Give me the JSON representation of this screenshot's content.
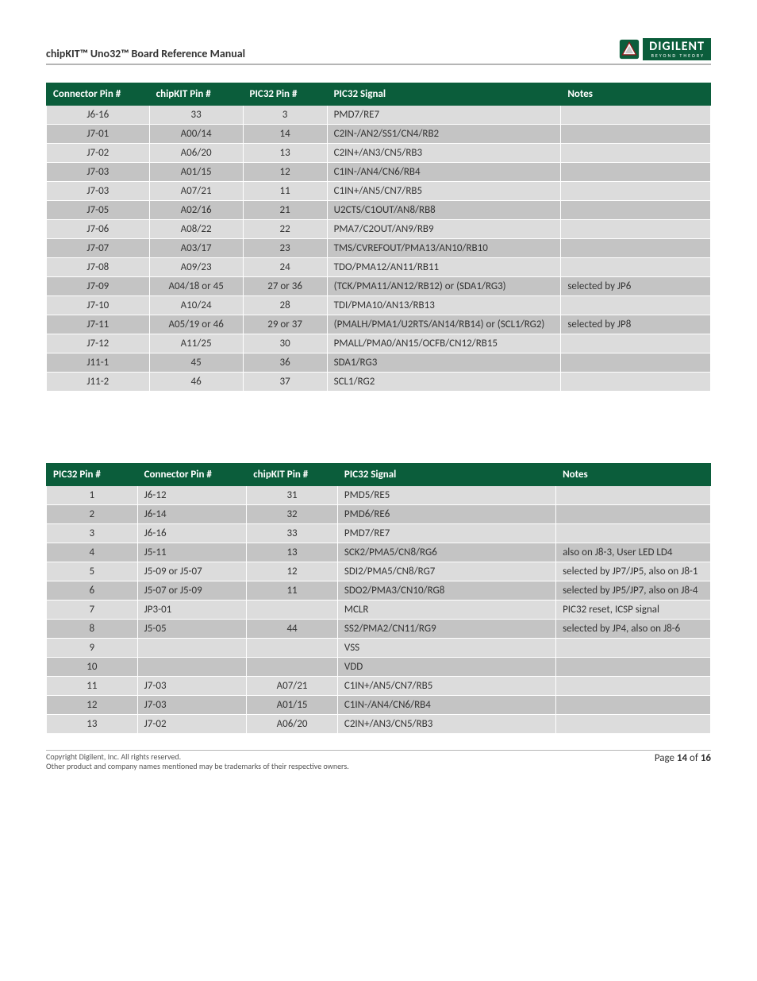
{
  "header": {
    "title": "chipKIT™ Uno32™ Board Reference Manual",
    "logo_text": "DIGILENT",
    "logo_sub": "BEYOND THEORY"
  },
  "table1": {
    "columns": [
      "Connector Pin #",
      "chipKIT Pin #",
      "PIC32 Pin #",
      "PIC32 Signal",
      "Notes"
    ],
    "rows": [
      [
        "J6-16",
        "33",
        "3",
        "PMD7/RE7",
        ""
      ],
      [
        "J7-01",
        "A00/14",
        "14",
        "C2IN-/AN2/SS1/CN4/RB2",
        ""
      ],
      [
        "J7-02",
        "A06/20",
        "13",
        "C2IN+/AN3/CN5/RB3",
        ""
      ],
      [
        "J7-03",
        "A01/15",
        "12",
        "C1IN-/AN4/CN6/RB4",
        ""
      ],
      [
        "J7-03",
        "A07/21",
        "11",
        "C1IN+/AN5/CN7/RB5",
        ""
      ],
      [
        "J7-05",
        "A02/16",
        "21",
        "U2CTS/C1OUT/AN8/RB8",
        ""
      ],
      [
        "J7-06",
        "A08/22",
        "22",
        "PMA7/C2OUT/AN9/RB9",
        ""
      ],
      [
        "J7-07",
        "A03/17",
        "23",
        "TMS/CVREFOUT/PMA13/AN10/RB10",
        ""
      ],
      [
        "J7-08",
        "A09/23",
        "24",
        "TDO/PMA12/AN11/RB11",
        ""
      ],
      [
        "J7-09",
        "A04/18 or 45",
        "27 or 36",
        "(TCK/PMA11/AN12/RB12) or (SDA1/RG3)",
        "selected by JP6"
      ],
      [
        "J7-10",
        "A10/24",
        "28",
        "TDI/PMA10/AN13/RB13",
        ""
      ],
      [
        "J7-11",
        "A05/19 or 46",
        "29 or 37",
        "(PMALH/PMA1/U2RTS/AN14/RB14) or (SCL1/RG2)",
        "selected by JP8"
      ],
      [
        "J7-12",
        "A11/25",
        "30",
        "PMALL/PMA0/AN15/OCFB/CN12/RB15",
        ""
      ],
      [
        "J11-1",
        "45",
        "36",
        "SDA1/RG3",
        ""
      ],
      [
        "J11-2",
        "46",
        "37",
        "SCL1/RG2",
        ""
      ]
    ]
  },
  "table2": {
    "columns": [
      "PIC32 Pin #",
      "Connector Pin #",
      "chipKIT Pin #",
      "PIC32 Signal",
      "Notes"
    ],
    "rows": [
      [
        "1",
        "J6-12",
        "31",
        "PMD5/RE5",
        ""
      ],
      [
        "2",
        "J6-14",
        "32",
        "PMD6/RE6",
        ""
      ],
      [
        "3",
        "J6-16",
        "33",
        "PMD7/RE7",
        ""
      ],
      [
        "4",
        "J5-11",
        "13",
        "SCK2/PMA5/CN8/RG6",
        "also on J8-3, User LED LD4"
      ],
      [
        "5",
        "J5-09 or J5-07",
        "12",
        "SDI2/PMA5/CN8/RG7",
        "selected by JP7/JP5, also on J8-1"
      ],
      [
        "6",
        "J5-07 or J5-09",
        "11",
        "SDO2/PMA3/CN10/RG8",
        "selected by JP5/JP7, also on J8-4"
      ],
      [
        "7",
        "JP3-01",
        "",
        "MCLR",
        "PIC32 reset, ICSP signal"
      ],
      [
        "8",
        "J5-05",
        "44",
        "SS2/PMA2/CN11/RG9",
        "selected by JP4, also on J8-6"
      ],
      [
        "9",
        "",
        "",
        "VSS",
        ""
      ],
      [
        "10",
        "",
        "",
        "VDD",
        ""
      ],
      [
        "11",
        "J7-03",
        "A07/21",
        "C1IN+/AN5/CN7/RB5",
        ""
      ],
      [
        "12",
        "J7-03",
        "A01/15",
        "C1IN-/AN4/CN6/RB4",
        ""
      ],
      [
        "13",
        "J7-02",
        "A06/20",
        "C2IN+/AN3/CN5/RB3",
        ""
      ]
    ]
  },
  "footer": {
    "copyright": "Copyright Digilent, Inc. All rights reserved.",
    "trademark": "Other product and company names mentioned may be trademarks of their respective owners.",
    "page_label": "Page ",
    "page_current": "14",
    "page_of": " of ",
    "page_total": "16"
  },
  "colors": {
    "header_green": "#0b5d3b",
    "row_odd": "#dcdcdc",
    "row_even": "#c4c4c4",
    "rule": "#b5b5b5",
    "text": "#333333"
  }
}
